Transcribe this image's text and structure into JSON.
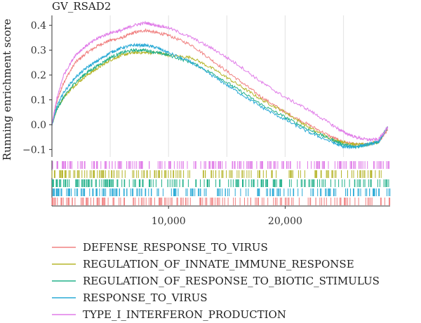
{
  "chart_data": {
    "type": "line",
    "title": "GV_RSAD2",
    "ylabel": "Running enrichment score",
    "xlabel": "",
    "xlim": [
      0,
      29000
    ],
    "ylim": [
      -0.13,
      0.44
    ],
    "x_ticks": [
      10000,
      20000
    ],
    "x_tick_labels": [
      "10,000",
      "20,000"
    ],
    "y_ticks": [
      -0.1,
      0.0,
      0.1,
      0.2,
      0.3,
      0.4
    ],
    "y_tick_labels": [
      "−0.1",
      "0.0",
      "0.1",
      "0.2",
      "0.3",
      "0.4"
    ],
    "grid": true,
    "legend_position": "bottom",
    "series": [
      {
        "name": "DEFENSE_RESPONSE_TO_VIRUS",
        "color": "#F08080",
        "x": [
          0,
          400,
          1000,
          2000,
          3000,
          4000,
          5000,
          6000,
          7000,
          8000,
          9000,
          10000,
          12000,
          14000,
          16000,
          18000,
          20000,
          22000,
          24000,
          25000,
          26000,
          27000,
          28000,
          28800
        ],
        "y": [
          0.0,
          0.09,
          0.17,
          0.25,
          0.29,
          0.32,
          0.34,
          0.35,
          0.37,
          0.38,
          0.37,
          0.36,
          0.32,
          0.25,
          0.18,
          0.11,
          0.05,
          0.0,
          -0.05,
          -0.07,
          -0.08,
          -0.08,
          -0.07,
          -0.02
        ]
      },
      {
        "name": "REGULATION_OF_INNATE_IMMUNE_RESPONSE",
        "color": "#B5B52A",
        "x": [
          0,
          400,
          1000,
          2000,
          3000,
          4000,
          5000,
          6000,
          7000,
          8000,
          9000,
          10000,
          12000,
          14000,
          16000,
          18000,
          20000,
          22000,
          24000,
          25000,
          26000,
          27000,
          28000,
          28800
        ],
        "y": [
          0.0,
          0.06,
          0.11,
          0.16,
          0.2,
          0.23,
          0.26,
          0.28,
          0.29,
          0.29,
          0.29,
          0.28,
          0.27,
          0.22,
          0.16,
          0.1,
          0.05,
          -0.01,
          -0.06,
          -0.07,
          -0.08,
          -0.08,
          -0.07,
          -0.01
        ]
      },
      {
        "name": "REGULATION_OF_RESPONSE_TO_BIOTIC_STIMULUS",
        "color": "#22B08A",
        "x": [
          0,
          400,
          1000,
          2000,
          3000,
          4000,
          5000,
          6000,
          7000,
          8000,
          9000,
          10000,
          12000,
          14000,
          16000,
          18000,
          20000,
          22000,
          24000,
          25000,
          26000,
          27000,
          28000,
          28800
        ],
        "y": [
          0.0,
          0.06,
          0.11,
          0.17,
          0.21,
          0.24,
          0.27,
          0.29,
          0.3,
          0.3,
          0.29,
          0.28,
          0.25,
          0.2,
          0.14,
          0.08,
          0.03,
          -0.02,
          -0.06,
          -0.08,
          -0.09,
          -0.08,
          -0.07,
          -0.01
        ]
      },
      {
        "name": "RESPONSE_TO_VIRUS",
        "color": "#2AAAD6",
        "x": [
          0,
          400,
          1000,
          2000,
          3000,
          4000,
          5000,
          6000,
          7000,
          8000,
          9000,
          10000,
          12000,
          14000,
          16000,
          18000,
          20000,
          22000,
          24000,
          25000,
          26000,
          27000,
          28000,
          28800
        ],
        "y": [
          0.0,
          0.07,
          0.13,
          0.19,
          0.23,
          0.26,
          0.29,
          0.31,
          0.32,
          0.32,
          0.31,
          0.29,
          0.25,
          0.19,
          0.13,
          0.07,
          0.02,
          -0.03,
          -0.07,
          -0.09,
          -0.09,
          -0.08,
          -0.07,
          -0.01
        ]
      },
      {
        "name": "TYPE_I_INTERFERON_PRODUCTION",
        "color": "#E07CE8",
        "x": [
          0,
          400,
          1000,
          2000,
          3000,
          4000,
          5000,
          6000,
          7000,
          8000,
          9000,
          10000,
          12000,
          14000,
          16000,
          18000,
          20000,
          22000,
          24000,
          25000,
          26000,
          27000,
          28000,
          28800
        ],
        "y": [
          0.0,
          0.1,
          0.2,
          0.28,
          0.32,
          0.35,
          0.37,
          0.38,
          0.4,
          0.41,
          0.4,
          0.39,
          0.35,
          0.3,
          0.24,
          0.17,
          0.11,
          0.06,
          0.0,
          -0.03,
          -0.05,
          -0.06,
          -0.06,
          -0.01
        ]
      }
    ]
  }
}
